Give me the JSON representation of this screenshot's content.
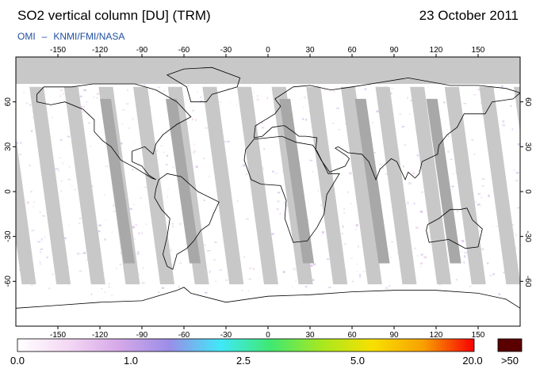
{
  "header": {
    "title": "SO2 vertical column [DU] (TRM)",
    "date": "23 October 2011",
    "credit_left": "OMI",
    "credit_sep": "–",
    "credit_right": "KNMI/FMI/NASA"
  },
  "map": {
    "lon_ticks": [
      "-150",
      "-120",
      "-90",
      "-60",
      "-30",
      "0",
      "30",
      "60",
      "90",
      "120",
      "150"
    ],
    "lat_ticks": [
      "60",
      "30",
      "0",
      "-30",
      "-60"
    ],
    "lon_values": [
      -150,
      -120,
      -90,
      -60,
      -30,
      0,
      30,
      60,
      90,
      120,
      150
    ],
    "lat_values": [
      60,
      30,
      0,
      -30,
      -60
    ],
    "lon_range": [
      -180,
      180
    ],
    "lat_range": [
      -90,
      90
    ],
    "ocean_color": "#ffffff",
    "missing_data_color": "#c8c8c8",
    "coastline_color": "#000000"
  },
  "colorbar": {
    "labels": [
      "0.0",
      "1.0",
      "2.5",
      "5.0",
      "20.0"
    ],
    "overflow_label": ">50",
    "overflow_color": "#5a0000",
    "colors": [
      "#ffffff",
      "#f4d8f4",
      "#d6a8e8",
      "#9a8ee8",
      "#40e8f8",
      "#40e870",
      "#a8e820",
      "#f8e000",
      "#f8a000",
      "#f80000"
    ]
  }
}
